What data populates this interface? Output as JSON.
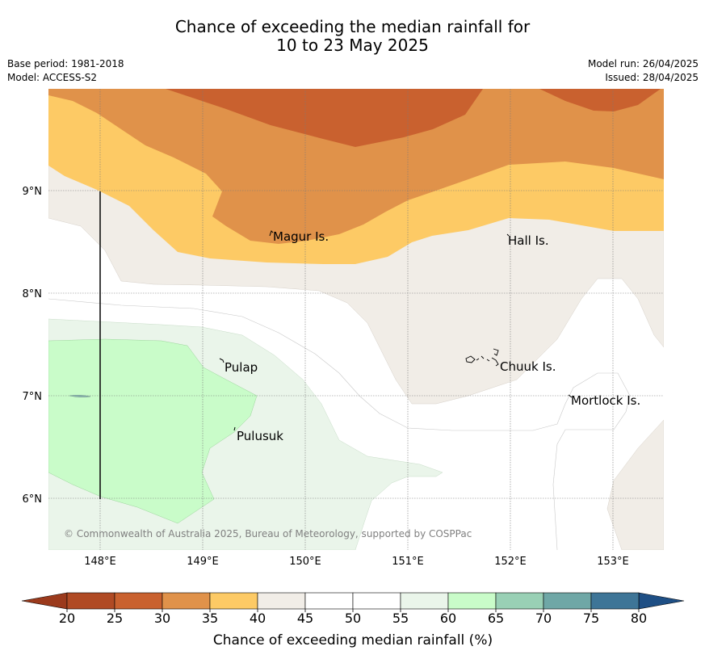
{
  "title": {
    "line1": "Chance of exceeding the median rainfall for",
    "line2": "10 to 23 May 2025"
  },
  "meta": {
    "base_period": "Base period: 1981-2018",
    "model": "Model: ACCESS-S2",
    "model_run": "Model run: 26/04/2025",
    "issued": "Issued: 28/04/2025"
  },
  "map": {
    "lat_ticks": [
      "9°N",
      "8°N",
      "7°N",
      "6°N"
    ],
    "lon_ticks": [
      "148°E",
      "149°E",
      "150°E",
      "151°E",
      "152°E",
      "153°E"
    ],
    "places": [
      "Magur Is.",
      "Hall Is.",
      "Pulap",
      "Chuuk Is.",
      "Mortlock Is.",
      "Pulusuk"
    ],
    "copyright": "© Commonwealth of Australia 2025, Bureau of Meteorology, supported by COSPPac"
  },
  "colorbar": {
    "ticks": [
      "20",
      "25",
      "30",
      "35",
      "40",
      "45",
      "50",
      "55",
      "60",
      "65",
      "70",
      "75",
      "80"
    ],
    "colors": [
      "#b04a24",
      "#c9612f",
      "#e0924a",
      "#fdca65",
      "#f1ede7",
      "#ffffff",
      "#ffffff",
      "#eaf5ea",
      "#c9fcc9",
      "#99d0b5",
      "#6fa7a6",
      "#3e7597"
    ],
    "under_color": "#9b3a1c",
    "over_color": "#1e4f85",
    "label": "Chance of exceeding median rainfall (%)"
  }
}
